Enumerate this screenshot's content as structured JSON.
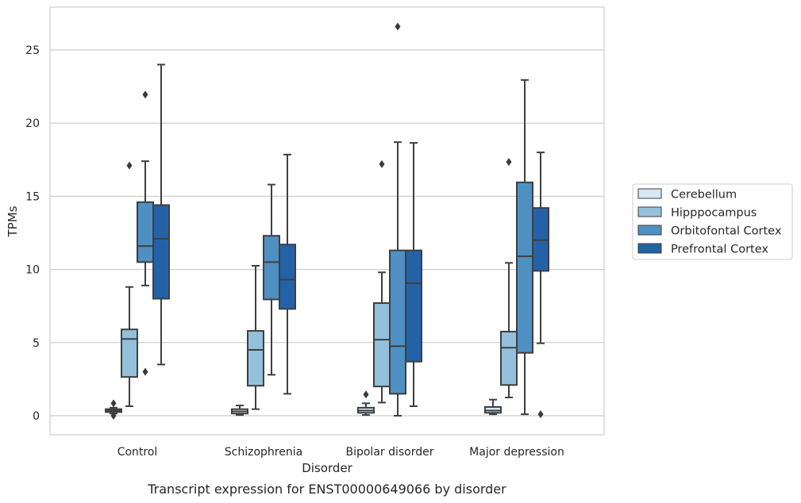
{
  "chart_data": {
    "type": "box",
    "caption": "Transcript expression for ENST00000649066 by disorder",
    "xlabel": "Disorder",
    "ylabel": "TPMs",
    "ylim": [
      -1.3,
      27.9
    ],
    "yticks": [
      0,
      5,
      10,
      15,
      20,
      25
    ],
    "grid": "horizontal",
    "legend_position": "right",
    "categories": [
      "Control",
      "Schizophrenia",
      "Bipolar disorder",
      "Major depression"
    ],
    "series": [
      {
        "name": "Cerebellum",
        "color": "#d7e6f3",
        "boxes": [
          {
            "whisker_low": 0.15,
            "q1": 0.25,
            "median": 0.35,
            "q3": 0.45,
            "whisker_high": 0.55,
            "outliers": [
              0.0,
              0.85
            ]
          },
          {
            "whisker_low": 0.05,
            "q1": 0.15,
            "median": 0.3,
            "q3": 0.45,
            "whisker_high": 0.7,
            "outliers": []
          },
          {
            "whisker_low": 0.05,
            "q1": 0.2,
            "median": 0.35,
            "q3": 0.55,
            "whisker_high": 0.85,
            "outliers": [
              1.45
            ]
          },
          {
            "whisker_low": 0.1,
            "q1": 0.2,
            "median": 0.35,
            "q3": 0.6,
            "whisker_high": 1.1,
            "outliers": []
          }
        ]
      },
      {
        "name": "Hipppocampus",
        "color": "#94c0dc",
        "boxes": [
          {
            "whisker_low": 0.65,
            "q1": 2.65,
            "median": 5.25,
            "q3": 5.9,
            "whisker_high": 8.8,
            "outliers": [
              17.1
            ]
          },
          {
            "whisker_low": 0.45,
            "q1": 2.05,
            "median": 4.5,
            "q3": 5.8,
            "whisker_high": 10.25,
            "outliers": []
          },
          {
            "whisker_low": 0.9,
            "q1": 2.0,
            "median": 5.2,
            "q3": 7.7,
            "whisker_high": 9.8,
            "outliers": [
              17.2
            ]
          },
          {
            "whisker_low": 1.25,
            "q1": 2.1,
            "median": 4.65,
            "q3": 5.75,
            "whisker_high": 10.45,
            "outliers": [
              17.35
            ]
          }
        ]
      },
      {
        "name": "Orbitofontal Cortex",
        "color": "#4f90c2",
        "boxes": [
          {
            "whisker_low": 8.9,
            "q1": 10.5,
            "median": 11.6,
            "q3": 14.6,
            "whisker_high": 17.4,
            "outliers": [
              3.0,
              21.95
            ]
          },
          {
            "whisker_low": 2.8,
            "q1": 7.95,
            "median": 10.5,
            "q3": 12.3,
            "whisker_high": 15.8,
            "outliers": []
          },
          {
            "whisker_low": 0.0,
            "q1": 1.5,
            "median": 4.75,
            "q3": 11.3,
            "whisker_high": 18.7,
            "outliers": [
              26.6
            ]
          },
          {
            "whisker_low": 0.1,
            "q1": 4.3,
            "median": 10.9,
            "q3": 15.95,
            "whisker_high": 22.95,
            "outliers": []
          }
        ]
      },
      {
        "name": "Prefrontal Cortex",
        "color": "#2462a8",
        "boxes": [
          {
            "whisker_low": 3.5,
            "q1": 8.0,
            "median": 12.1,
            "q3": 14.4,
            "whisker_high": 24.0,
            "outliers": []
          },
          {
            "whisker_low": 1.5,
            "q1": 7.3,
            "median": 9.3,
            "q3": 11.7,
            "whisker_high": 17.85,
            "outliers": []
          },
          {
            "whisker_low": 0.65,
            "q1": 3.7,
            "median": 9.05,
            "q3": 11.3,
            "whisker_high": 18.65,
            "outliers": []
          },
          {
            "whisker_low": 4.95,
            "q1": 9.9,
            "median": 12.0,
            "q3": 14.2,
            "whisker_high": 18.0,
            "outliers": [
              0.1
            ]
          }
        ]
      }
    ]
  }
}
